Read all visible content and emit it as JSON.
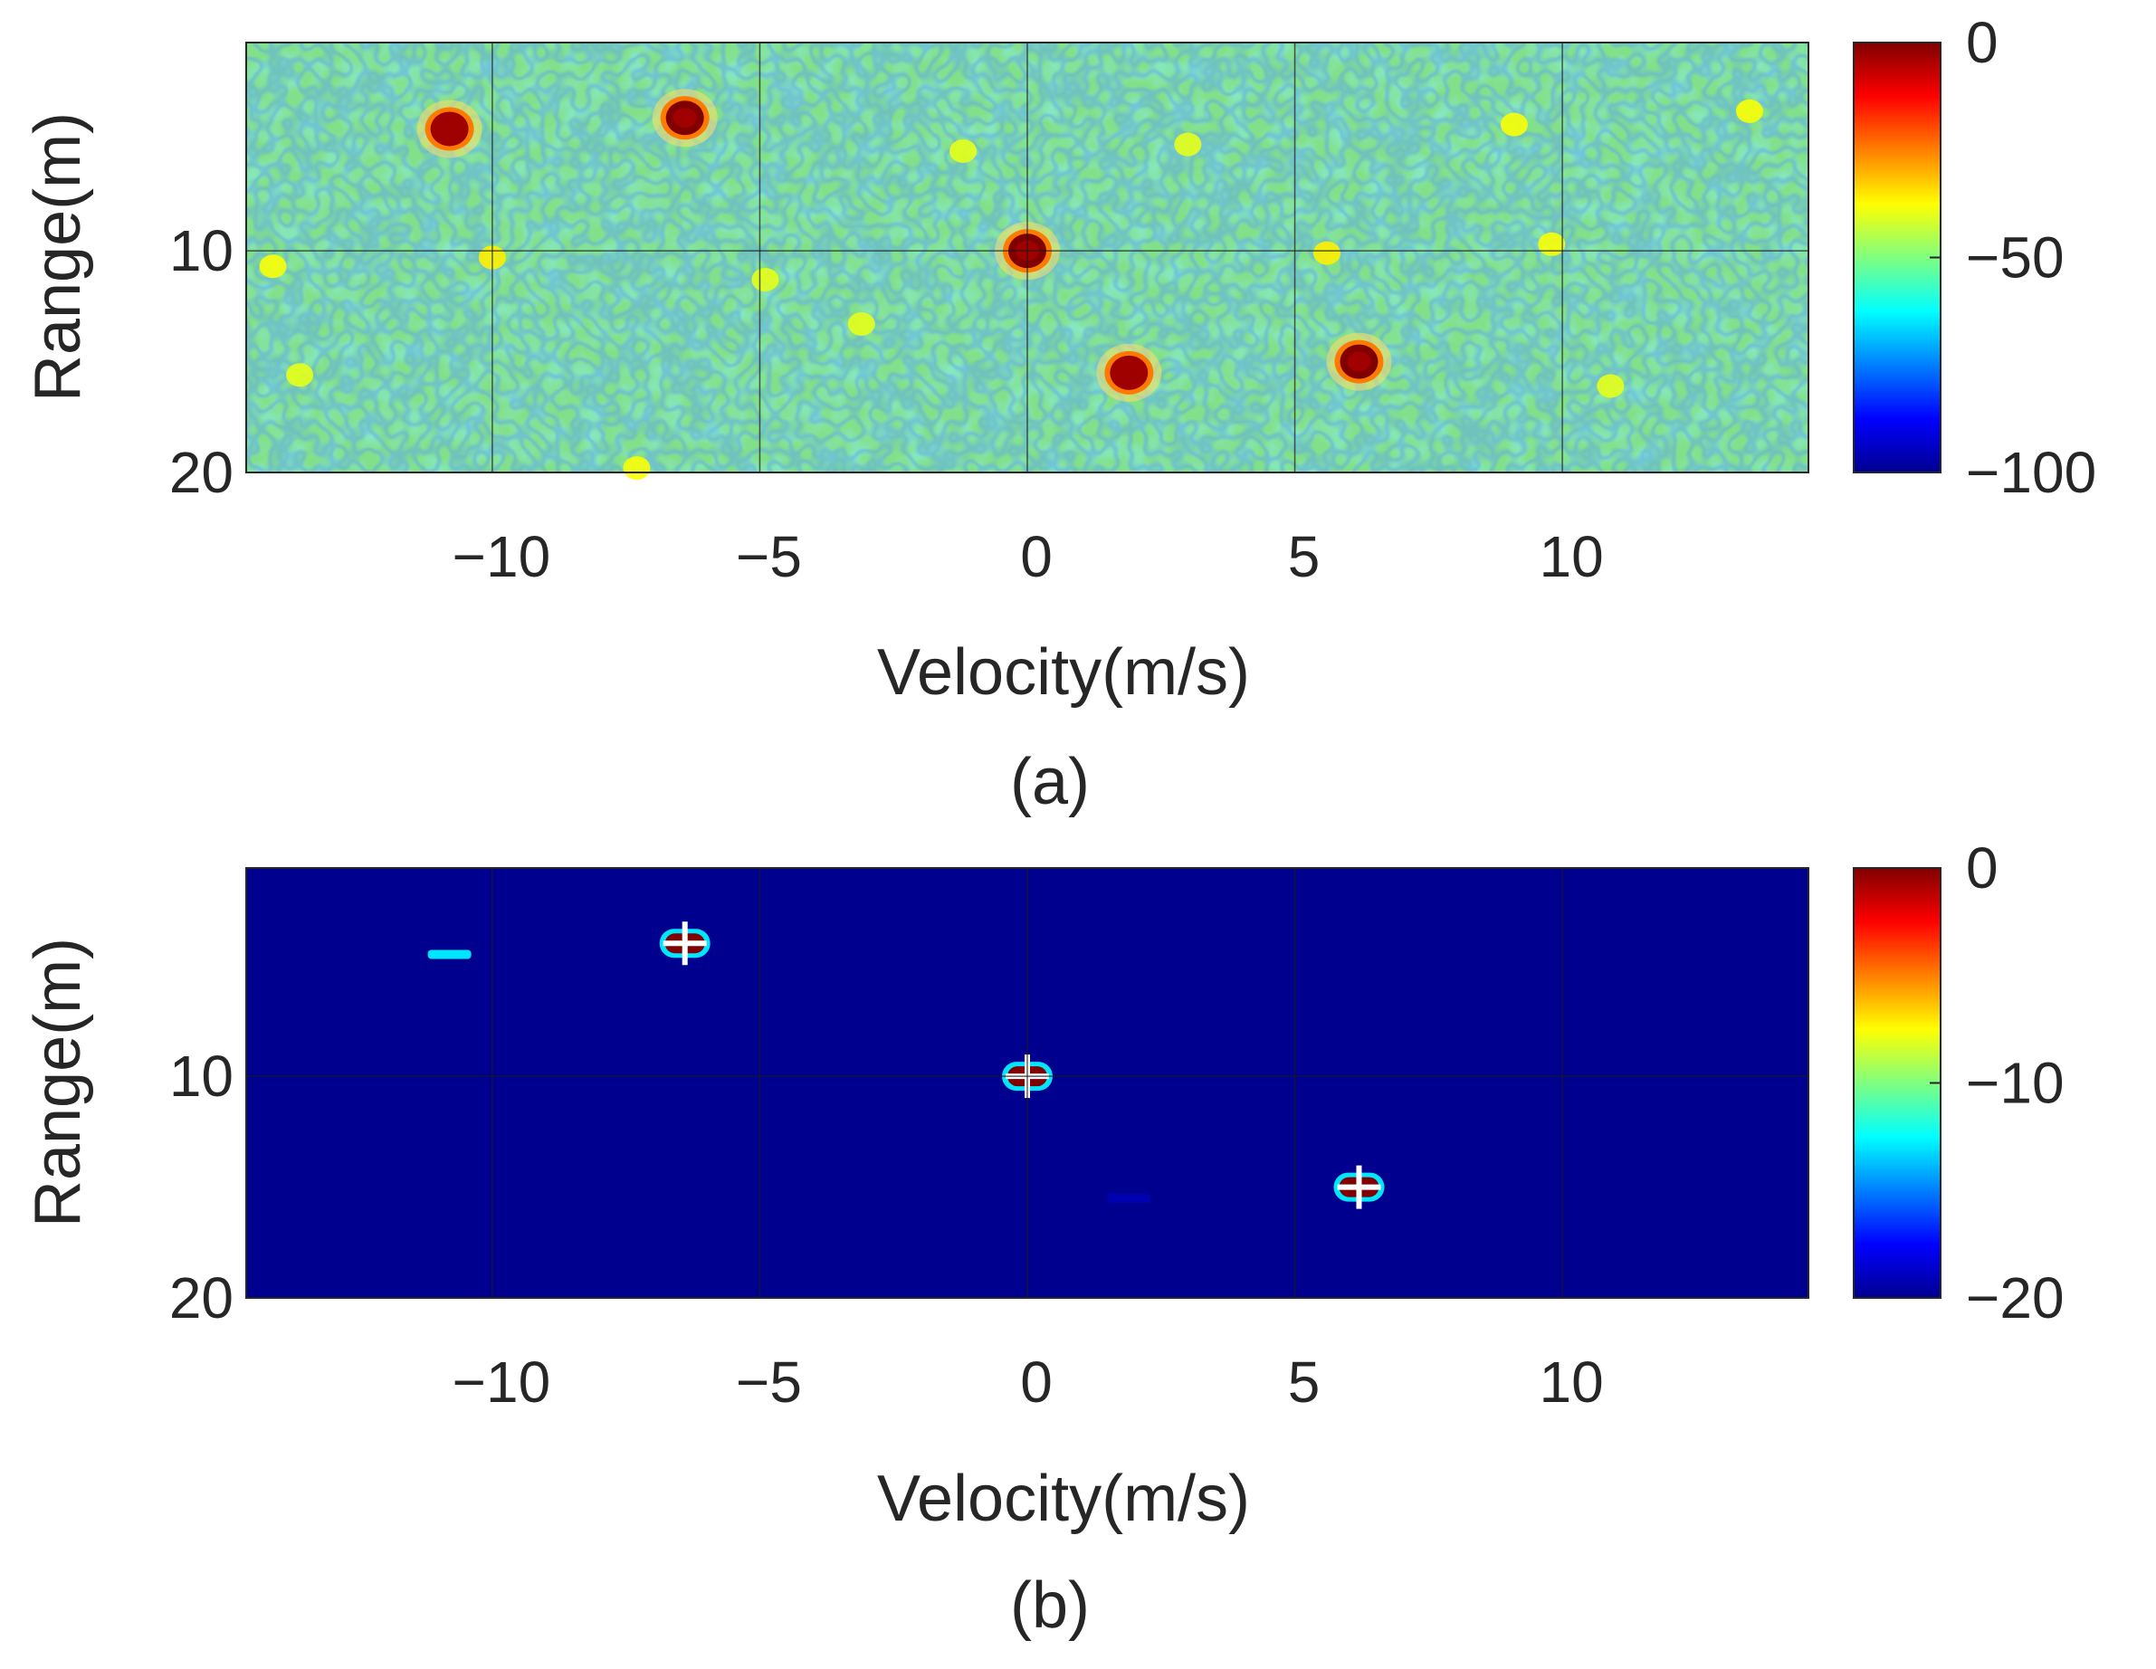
{
  "chart_data": [
    {
      "type": "heatmap",
      "panel_label": "(a)",
      "xlabel": "Velocity(m/s)",
      "ylabel": "Range(m)",
      "xlim": [
        -14.6,
        14.6
      ],
      "ylim": [
        20,
        0.6
      ],
      "y_axis_direction": "down",
      "xticks": [
        -10,
        -5,
        0,
        5,
        10
      ],
      "xtick_labels": [
        "−10",
        "−5",
        "0",
        "5",
        "10"
      ],
      "yticks": [
        10,
        20
      ],
      "ytick_labels": [
        "10",
        "20"
      ],
      "grid": true,
      "colormap": "jet",
      "colorbar": {
        "range": [
          -100,
          0
        ],
        "ticks": [
          0,
          -50,
          -100
        ],
        "tick_labels": [
          "0",
          "−50",
          "−100"
        ]
      },
      "background": "noise floor approx. -50",
      "peaks": [
        {
          "velocity": -10.8,
          "range": 4.5,
          "value": -3
        },
        {
          "velocity": -6.4,
          "range": 4.0,
          "value": 0
        },
        {
          "velocity": 0.0,
          "range": 10.0,
          "value": 0
        },
        {
          "velocity": 1.9,
          "range": 15.5,
          "value": -3
        },
        {
          "velocity": 6.2,
          "range": 15.0,
          "value": 0
        }
      ],
      "sidelobes": [
        {
          "velocity": -14.1,
          "range": 10.7,
          "value": -38
        },
        {
          "velocity": -10.0,
          "range": 10.3,
          "value": -36
        },
        {
          "velocity": -13.6,
          "range": 15.6,
          "value": -40
        },
        {
          "velocity": -7.3,
          "range": 19.8,
          "value": -38
        },
        {
          "velocity": -4.9,
          "range": 11.3,
          "value": -40
        },
        {
          "velocity": -3.1,
          "range": 13.3,
          "value": -40
        },
        {
          "velocity": -1.2,
          "range": 5.5,
          "value": -40
        },
        {
          "velocity": 3.0,
          "range": 5.2,
          "value": -40
        },
        {
          "velocity": 5.6,
          "range": 10.1,
          "value": -36
        },
        {
          "velocity": 9.1,
          "range": 4.3,
          "value": -38
        },
        {
          "velocity": 9.8,
          "range": 9.7,
          "value": -38
        },
        {
          "velocity": 10.9,
          "range": 16.1,
          "value": -40
        },
        {
          "velocity": 13.5,
          "range": 3.7,
          "value": -38
        }
      ]
    },
    {
      "type": "heatmap",
      "panel_label": "(b)",
      "xlabel": "Velocity(m/s)",
      "ylabel": "Range(m)",
      "xlim": [
        -14.6,
        14.6
      ],
      "ylim": [
        20,
        0.6
      ],
      "y_axis_direction": "down",
      "xticks": [
        -10,
        -5,
        0,
        5,
        10
      ],
      "xtick_labels": [
        "−10",
        "−5",
        "0",
        "5",
        "10"
      ],
      "yticks": [
        10,
        20
      ],
      "ytick_labels": [
        "10",
        "20"
      ],
      "grid": true,
      "colormap": "jet",
      "colorbar": {
        "range": [
          -20,
          0
        ],
        "ticks": [
          0,
          -10,
          -20
        ],
        "tick_labels": [
          "0",
          "−10",
          "−20"
        ]
      },
      "background": "-20 (floor)",
      "detections": [
        {
          "velocity": -6.4,
          "range": 4.0,
          "value": 0,
          "marker": "+"
        },
        {
          "velocity": 0.0,
          "range": 10.0,
          "value": 0,
          "marker": "+"
        },
        {
          "velocity": 6.2,
          "range": 15.0,
          "value": 0,
          "marker": "+"
        }
      ],
      "residuals": [
        {
          "velocity": -10.8,
          "range": 4.5,
          "value": -13
        },
        {
          "velocity": 1.9,
          "range": 15.5,
          "value": -19
        }
      ]
    }
  ]
}
